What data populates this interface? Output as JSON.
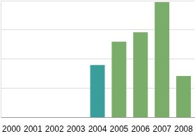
{
  "chart_data": {
    "type": "bar",
    "categories": [
      "2000",
      "2001",
      "2002",
      "2003",
      "2004",
      "2005",
      "2006",
      "2007",
      "2008"
    ],
    "values": [
      null,
      null,
      null,
      null,
      1.8,
      2.6,
      2.92,
      3.95,
      1.42
    ],
    "colors": [
      "#7aad6a",
      "#7aad6a",
      "#7aad6a",
      "#7aad6a",
      "#3a9e9a",
      "#7aad6a",
      "#7aad6a",
      "#7aad6a",
      "#7aad6a"
    ],
    "ylim": [
      0,
      4
    ],
    "yticks": [
      0,
      1,
      2,
      3,
      4
    ],
    "grid": true,
    "tick_labels": "x"
  }
}
